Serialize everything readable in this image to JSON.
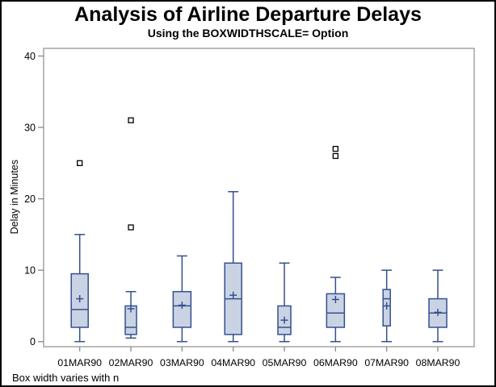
{
  "header": {
    "title": "Analysis of Airline Departure Delays",
    "subtitle": "Using the BOXWIDTHSCALE= Option"
  },
  "footnote": "Box width varies with n",
  "colors": {
    "box_fill": "#c9d3e4",
    "box_stroke": "#35508e",
    "frame": "#a3a3a3",
    "tick": "#8a8a8a",
    "text": "#000000",
    "outlier": "#000000"
  },
  "chart_data": {
    "type": "box",
    "title": "Analysis of Airline Departure Delays",
    "subtitle": "Using the BOXWIDTHSCALE= Option",
    "footnote": "Box width varies with n",
    "xlabel": "",
    "ylabel": "Delay in Minutes",
    "yticks": [
      0,
      10,
      20,
      30,
      40
    ],
    "ylim": [
      0,
      41
    ],
    "grid": false,
    "legend": null,
    "categories": [
      "01MAR90",
      "02MAR90",
      "03MAR90",
      "04MAR90",
      "05MAR90",
      "06MAR90",
      "07MAR90",
      "08MAR90"
    ],
    "boxes": [
      {
        "label": "01MAR90",
        "low": 0,
        "q1": 2,
        "median": 4.5,
        "mean": 6,
        "q3": 9.5,
        "high": 15,
        "outliers": [
          25
        ],
        "rel_width": 21
      },
      {
        "label": "02MAR90",
        "low": 0.5,
        "q1": 1,
        "median": 2,
        "mean": 4.6,
        "q3": 5,
        "high": 7,
        "outliers": [
          16,
          31
        ],
        "rel_width": 14
      },
      {
        "label": "03MAR90",
        "low": 0,
        "q1": 2,
        "median": 5,
        "mean": 5.1,
        "q3": 7,
        "high": 12,
        "outliers": [],
        "rel_width": 22
      },
      {
        "label": "04MAR90",
        "low": 0,
        "q1": 1,
        "median": 6,
        "mean": 6.5,
        "q3": 11,
        "high": 21,
        "outliers": [],
        "rel_width": 21
      },
      {
        "label": "05MAR90",
        "low": 0,
        "q1": 1,
        "median": 2,
        "mean": 3,
        "q3": 5,
        "high": 11,
        "outliers": [],
        "rel_width": 16
      },
      {
        "label": "06MAR90",
        "low": 0,
        "q1": 2,
        "median": 4,
        "mean": 5.9,
        "q3": 6.7,
        "high": 9,
        "outliers": [
          26,
          27
        ],
        "rel_width": 22
      },
      {
        "label": "07MAR90",
        "low": 0,
        "q1": 2.2,
        "median": 6,
        "mean": 5,
        "q3": 7.3,
        "high": 10,
        "outliers": [],
        "rel_width": 9
      },
      {
        "label": "08MAR90",
        "low": 0,
        "q1": 2,
        "median": 4,
        "mean": 4.1,
        "q3": 6,
        "high": 10,
        "outliers": [],
        "rel_width": 22
      }
    ]
  }
}
